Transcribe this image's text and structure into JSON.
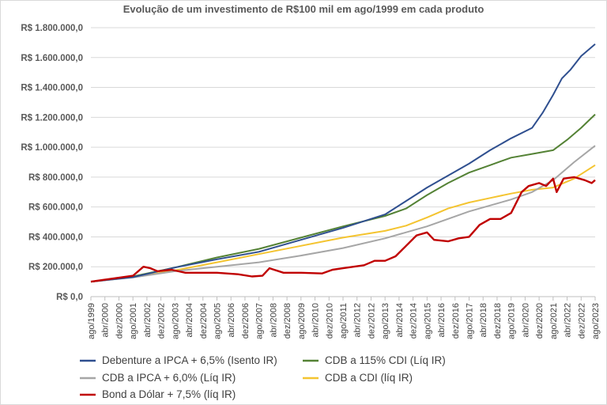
{
  "chart_data": {
    "type": "line",
    "title": "Evolução de um investimento de R$100 mil em ago/1999 em cada produto",
    "xlabel": "",
    "ylabel": "",
    "ylim": [
      0,
      1800000
    ],
    "yticks": [
      0,
      200000,
      400000,
      600000,
      800000,
      1000000,
      1200000,
      1400000,
      1600000,
      1800000
    ],
    "ytick_labels": [
      "R$ 0,0",
      "R$ 200.000,0",
      "R$ 400.000,0",
      "R$ 600.000,0",
      "R$ 800.000,0",
      "R$ 1.000.000,0",
      "R$ 1.200.000,0",
      "R$ 1.400.000,0",
      "R$ 1.600.000,0",
      "R$ 1.800.000,0"
    ],
    "xlim": [
      "1999-08",
      "2023-08"
    ],
    "x_tick_labels": [
      "ago/1999",
      "abr/2000",
      "dez/2000",
      "ago/2001",
      "abr/2002",
      "dez/2002",
      "ago/2003",
      "abr/2004",
      "dez/2004",
      "ago/2005",
      "abr/2006",
      "dez/2006",
      "ago/2007",
      "abr/2008",
      "dez/2008",
      "ago/2009",
      "abr/2010",
      "dez/2010",
      "ago/2011",
      "abr/2012",
      "dez/2012",
      "ago/2013",
      "abr/2014",
      "dez/2014",
      "ago/2015",
      "abr/2016",
      "dez/2016",
      "ago/2017",
      "abr/2018",
      "dez/2018",
      "ago/2019",
      "abr/2020",
      "dez/2020",
      "ago/2021",
      "abr/2022",
      "dez/2022",
      "ago/2023"
    ],
    "grid": true,
    "legend_position": "bottom",
    "series": [
      {
        "name": "Debenture a IPCA + 6,5% (Isento IR)",
        "color": "#2f4f8f",
        "points": [
          [
            "1999-08",
            100000
          ],
          [
            "2001-08",
            130000
          ],
          [
            "2003-08",
            195000
          ],
          [
            "2005-08",
            250000
          ],
          [
            "2007-08",
            300000
          ],
          [
            "2009-08",
            380000
          ],
          [
            "2011-08",
            460000
          ],
          [
            "2013-08",
            550000
          ],
          [
            "2014-08",
            640000
          ],
          [
            "2015-08",
            730000
          ],
          [
            "2016-08",
            810000
          ],
          [
            "2017-08",
            890000
          ],
          [
            "2018-08",
            980000
          ],
          [
            "2019-08",
            1060000
          ],
          [
            "2020-08",
            1130000
          ],
          [
            "2021-02",
            1230000
          ],
          [
            "2021-08",
            1350000
          ],
          [
            "2022-01",
            1460000
          ],
          [
            "2022-06",
            1520000
          ],
          [
            "2022-12",
            1610000
          ],
          [
            "2023-08",
            1690000
          ]
        ]
      },
      {
        "name": "CDB a 115% CDI (Líq IR)",
        "color": "#548235",
        "points": [
          [
            "1999-08",
            100000
          ],
          [
            "2001-08",
            135000
          ],
          [
            "2003-08",
            195000
          ],
          [
            "2005-08",
            262000
          ],
          [
            "2007-08",
            320000
          ],
          [
            "2009-08",
            395000
          ],
          [
            "2011-08",
            470000
          ],
          [
            "2013-08",
            540000
          ],
          [
            "2014-08",
            590000
          ],
          [
            "2015-08",
            680000
          ],
          [
            "2016-08",
            760000
          ],
          [
            "2017-08",
            830000
          ],
          [
            "2018-08",
            880000
          ],
          [
            "2019-08",
            930000
          ],
          [
            "2020-08",
            955000
          ],
          [
            "2021-08",
            980000
          ],
          [
            "2022-04",
            1050000
          ],
          [
            "2022-12",
            1130000
          ],
          [
            "2023-08",
            1220000
          ]
        ]
      },
      {
        "name": "CDB a IPCA + 6,0% (Líq IR)",
        "color": "#a6a6a6",
        "points": [
          [
            "1999-08",
            100000
          ],
          [
            "2001-08",
            128000
          ],
          [
            "2003-08",
            170000
          ],
          [
            "2005-08",
            200000
          ],
          [
            "2007-08",
            230000
          ],
          [
            "2009-08",
            275000
          ],
          [
            "2011-08",
            325000
          ],
          [
            "2013-08",
            390000
          ],
          [
            "2015-08",
            470000
          ],
          [
            "2017-08",
            570000
          ],
          [
            "2019-08",
            650000
          ],
          [
            "2020-08",
            700000
          ],
          [
            "2021-08",
            780000
          ],
          [
            "2022-08",
            900000
          ],
          [
            "2023-08",
            1010000
          ]
        ]
      },
      {
        "name": "CDB a CDI (líq IR)",
        "color": "#f4c430",
        "points": [
          [
            "1999-08",
            100000
          ],
          [
            "2001-08",
            130000
          ],
          [
            "2003-08",
            175000
          ],
          [
            "2005-08",
            230000
          ],
          [
            "2007-08",
            285000
          ],
          [
            "2009-08",
            340000
          ],
          [
            "2011-08",
            395000
          ],
          [
            "2013-08",
            440000
          ],
          [
            "2014-08",
            475000
          ],
          [
            "2015-08",
            530000
          ],
          [
            "2016-08",
            590000
          ],
          [
            "2017-08",
            630000
          ],
          [
            "2018-08",
            660000
          ],
          [
            "2019-08",
            690000
          ],
          [
            "2020-08",
            715000
          ],
          [
            "2021-08",
            730000
          ],
          [
            "2022-08",
            790000
          ],
          [
            "2023-08",
            880000
          ]
        ]
      },
      {
        "name": "Bond a Dólar + 7,5% (líq IR)",
        "color": "#c00000",
        "points": [
          [
            "1999-08",
            100000
          ],
          [
            "2000-08",
            120000
          ],
          [
            "2001-08",
            140000
          ],
          [
            "2002-02",
            200000
          ],
          [
            "2002-06",
            190000
          ],
          [
            "2002-10",
            170000
          ],
          [
            "2003-06",
            180000
          ],
          [
            "2004-02",
            160000
          ],
          [
            "2005-08",
            160000
          ],
          [
            "2006-08",
            150000
          ],
          [
            "2007-04",
            135000
          ],
          [
            "2007-10",
            140000
          ],
          [
            "2008-02",
            190000
          ],
          [
            "2008-10",
            160000
          ],
          [
            "2009-08",
            160000
          ],
          [
            "2010-08",
            155000
          ],
          [
            "2011-02",
            180000
          ],
          [
            "2011-08",
            190000
          ],
          [
            "2012-08",
            210000
          ],
          [
            "2013-02",
            240000
          ],
          [
            "2013-08",
            240000
          ],
          [
            "2014-02",
            270000
          ],
          [
            "2014-08",
            340000
          ],
          [
            "2015-02",
            410000
          ],
          [
            "2015-08",
            430000
          ],
          [
            "2015-12",
            380000
          ],
          [
            "2016-08",
            370000
          ],
          [
            "2017-02",
            390000
          ],
          [
            "2017-08",
            400000
          ],
          [
            "2018-02",
            480000
          ],
          [
            "2018-08",
            520000
          ],
          [
            "2019-02",
            520000
          ],
          [
            "2019-08",
            560000
          ],
          [
            "2020-02",
            700000
          ],
          [
            "2020-06",
            740000
          ],
          [
            "2020-12",
            760000
          ],
          [
            "2021-04",
            740000
          ],
          [
            "2021-08",
            790000
          ],
          [
            "2021-10",
            700000
          ],
          [
            "2022-02",
            790000
          ],
          [
            "2022-08",
            800000
          ],
          [
            "2023-02",
            780000
          ],
          [
            "2023-06",
            760000
          ],
          [
            "2023-08",
            780000
          ]
        ]
      }
    ]
  }
}
